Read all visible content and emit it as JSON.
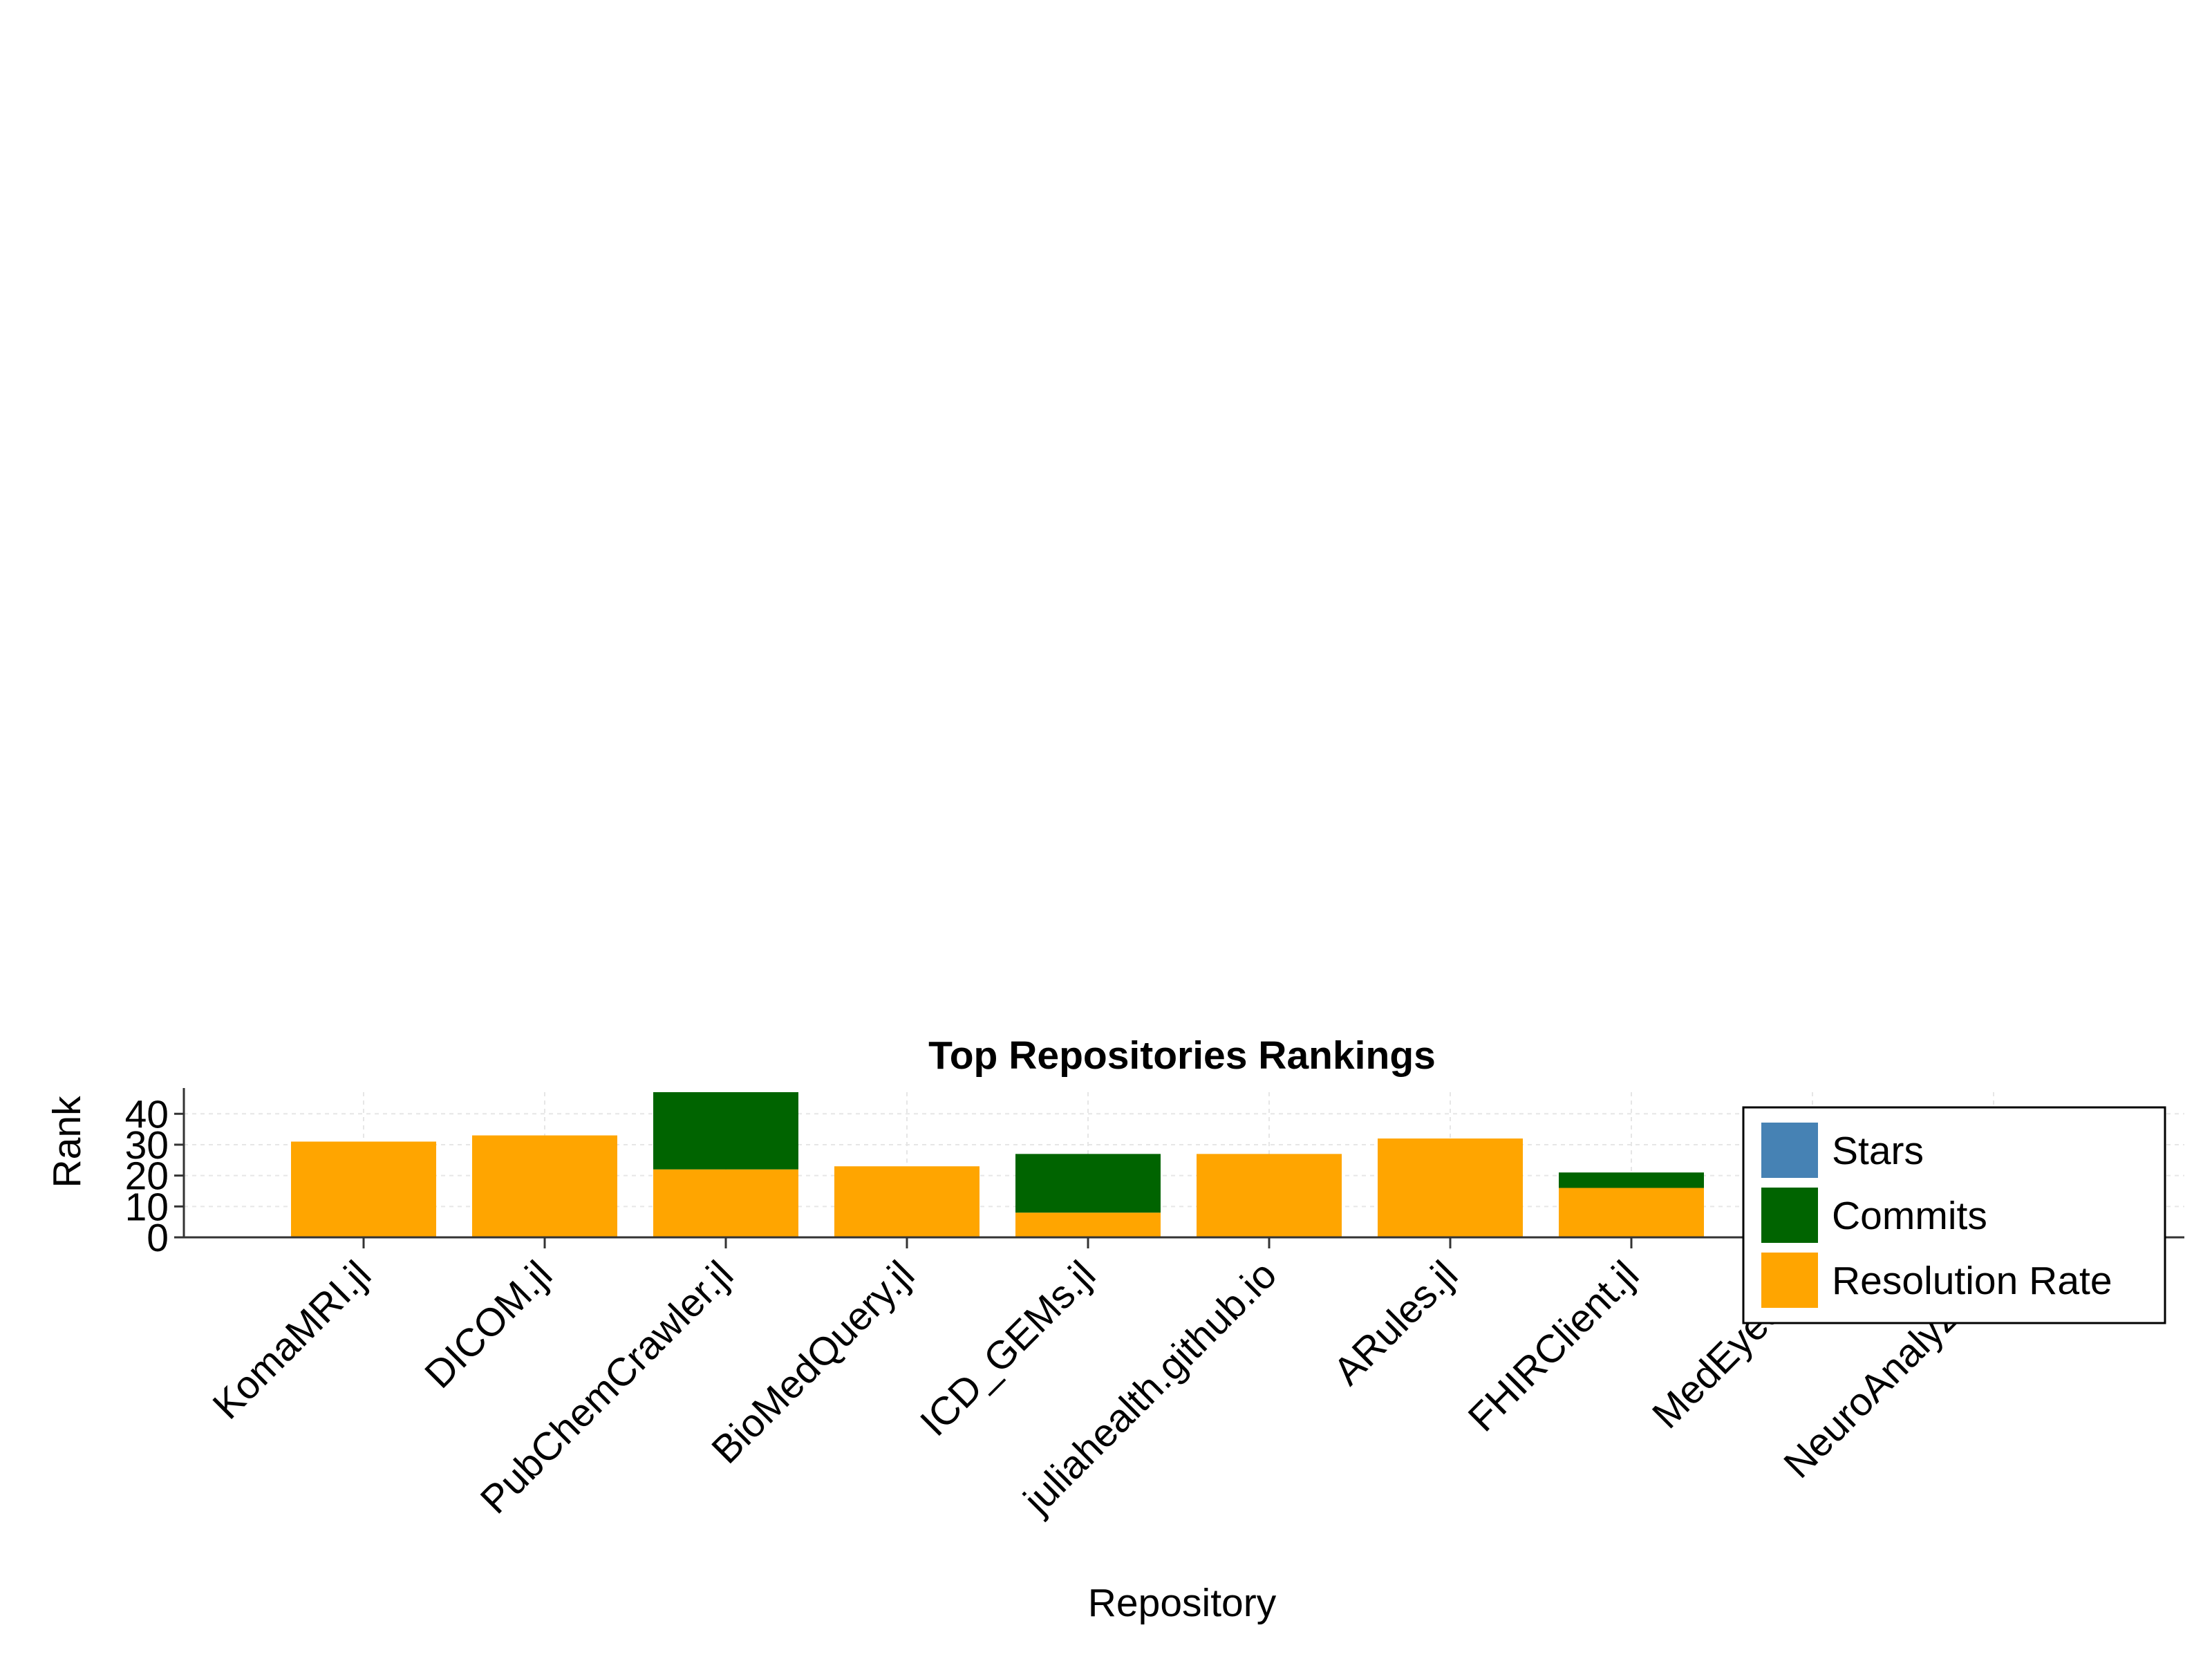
{
  "chart_data": {
    "type": "bar",
    "title": "Top Repositories Rankings",
    "xlabel": "Repository",
    "ylabel": "Rank",
    "ylim": [
      0,
      47
    ],
    "yticks": [
      "0",
      "10",
      "20",
      "30",
      "40"
    ],
    "grid": true,
    "legend_position": "right",
    "stacked": true,
    "categories": [
      "KomaMRI.jl",
      "DICOM.jl",
      "PubChemCrawler.jl",
      "BioMedQuery.jl",
      "ICD_GEMs.jl",
      "juliahealth.github.io",
      "ARules.jl",
      "FHIRClient.jl",
      "MedEye3d.jl",
      "NeuroAnalyzer.jl"
    ],
    "series": [
      {
        "name": "Stars",
        "color": "#4682b4",
        "values": [
          0,
          0,
          0,
          0,
          0,
          0,
          0,
          0,
          0,
          0
        ]
      },
      {
        "name": "Commits",
        "color": "#006400",
        "values": [
          0,
          0,
          25,
          0,
          19,
          0,
          0,
          5,
          0,
          0
        ]
      },
      {
        "name": "Resolution Rate",
        "color": "#ffa500",
        "values": [
          31,
          33,
          22,
          23,
          8,
          27,
          32,
          16,
          0,
          0
        ]
      }
    ]
  }
}
